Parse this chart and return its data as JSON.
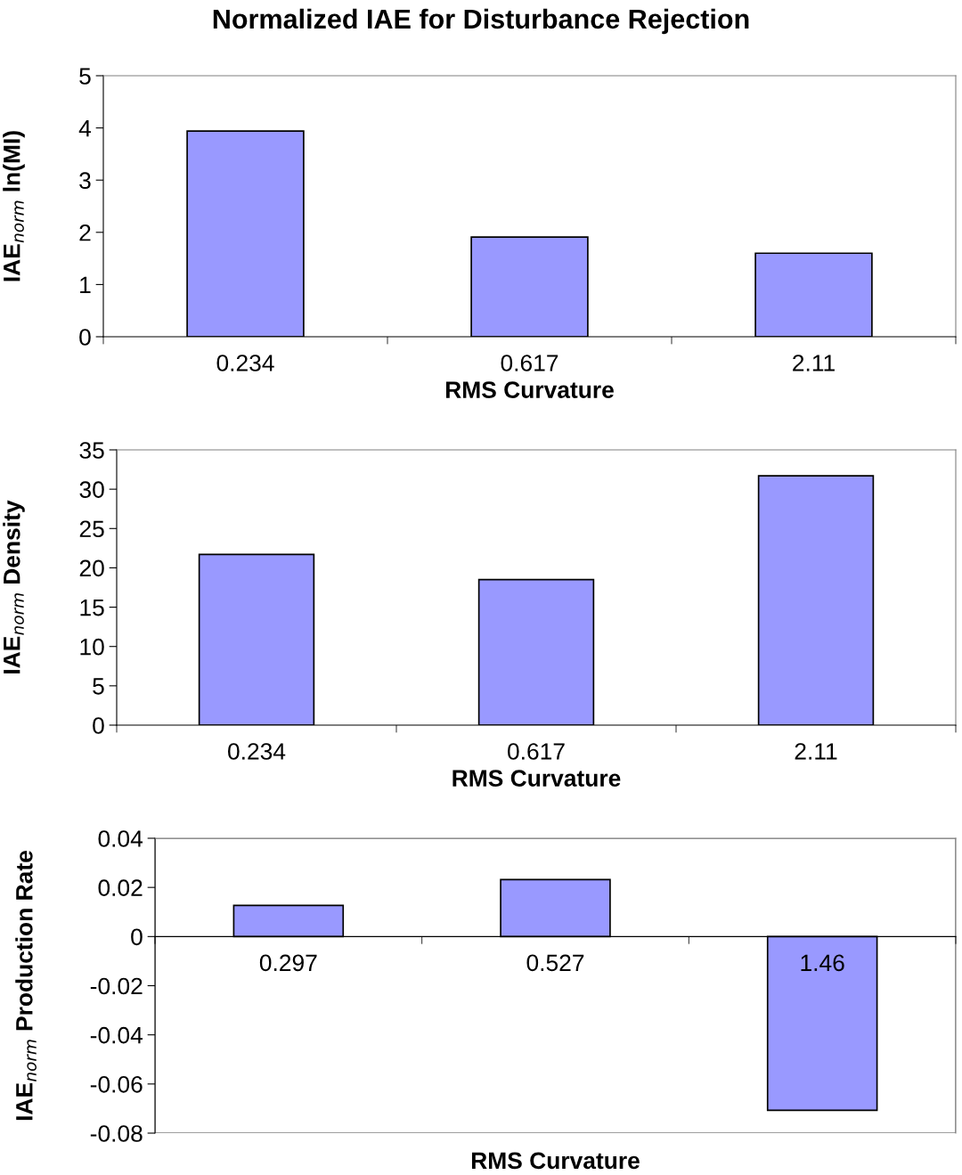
{
  "chart_data": [
    {
      "type": "bar",
      "title": "Normalized IAE for Disturbance Rejection",
      "xlabel": "RMS Curvature",
      "ylabel": "IAE$_{norm}$ ln(MI)",
      "categories": [
        "0.234",
        "0.617",
        "2.11"
      ],
      "values": [
        3.94,
        1.91,
        1.6
      ],
      "color": "#9999ff",
      "ylim": [
        0,
        5
      ],
      "yticks": [
        0,
        1,
        2,
        3,
        4,
        5
      ],
      "grid": false,
      "legend": false
    },
    {
      "type": "bar",
      "xlabel": "RMS Curvature",
      "ylabel": "IAE$_{norm}$ Density",
      "categories": [
        "0.234",
        "0.617",
        "2.11"
      ],
      "values": [
        21.7,
        18.5,
        31.7
      ],
      "color": "#9999ff",
      "ylim": [
        0,
        35
      ],
      "yticks": [
        0,
        5,
        10,
        15,
        20,
        25,
        30,
        35
      ],
      "grid": false,
      "legend": false
    },
    {
      "type": "bar",
      "xlabel": "RMS Curvature",
      "ylabel": "IAE$_{norm}$ Production Rate",
      "categories": [
        "0.297",
        "0.527",
        "1.46"
      ],
      "values": [
        0.0127,
        0.0232,
        -0.0707
      ],
      "color": "#9999ff",
      "ylim": [
        -0.08,
        0.04
      ],
      "yticks": [
        {
          "value": -0.08,
          "label": "-0.08"
        },
        {
          "value": -0.06,
          "label": "-0.06"
        },
        {
          "value": -0.04,
          "label": "-0.04"
        },
        {
          "value": -0.02,
          "label": "-0.02"
        },
        0,
        {
          "value": 0.02,
          "label": "0.02"
        },
        {
          "value": 0.04,
          "label": "0.04"
        }
      ],
      "grid": false,
      "legend": false
    }
  ]
}
